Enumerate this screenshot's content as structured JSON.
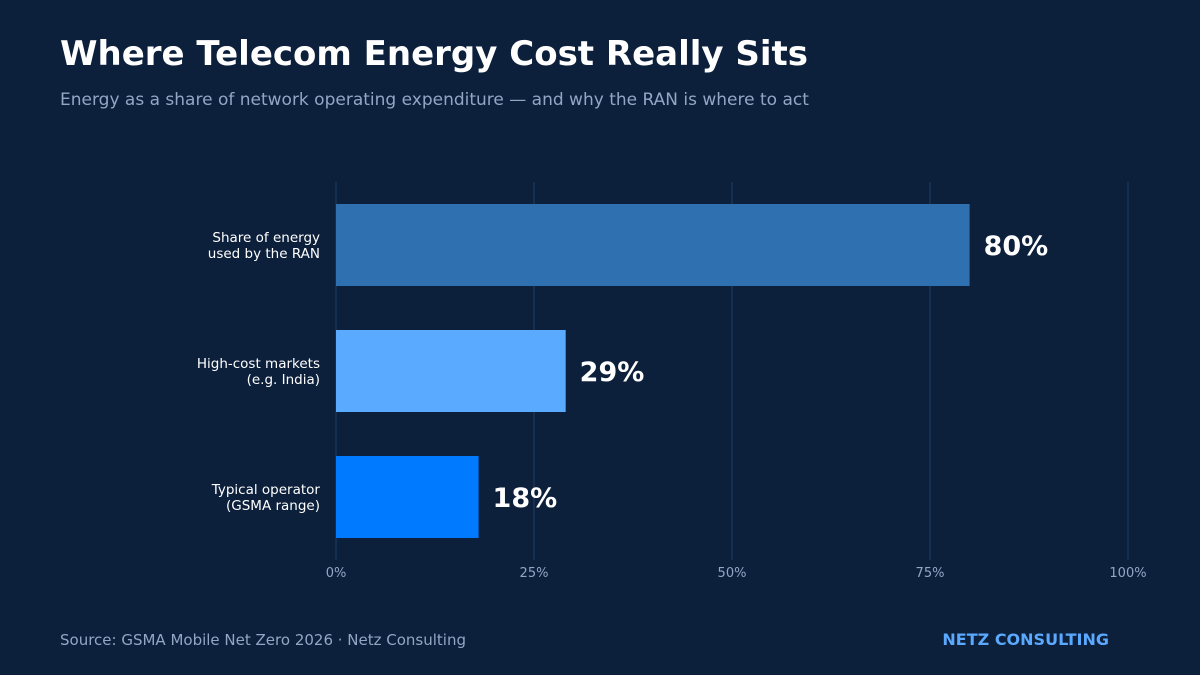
{
  "header": {
    "title": "Where Telecom Energy Cost Really Sits",
    "subtitle": "Energy as a share of network operating expenditure — and why the RAN is where to act"
  },
  "chart_data": {
    "type": "bar",
    "orientation": "horizontal",
    "categories": [
      [
        "Share of energy",
        "used by the RAN"
      ],
      [
        "High-cost markets",
        "(e.g. India)"
      ],
      [
        "Typical operator",
        "(GSMA range)"
      ]
    ],
    "values": [
      80,
      29,
      18
    ],
    "value_labels": [
      "80%",
      "29%",
      "18%"
    ],
    "bar_colors": [
      "#2e70b0",
      "#5aabff",
      "#007bff"
    ],
    "xlim": [
      0,
      100
    ],
    "xticks": [
      0,
      25,
      50,
      75,
      100
    ],
    "xtick_labels": [
      "0%",
      "25%",
      "50%",
      "75%",
      "100%"
    ],
    "grid": true,
    "legend": "none"
  },
  "footer": {
    "source": "Source: GSMA Mobile Net Zero 2026 · Netz Consulting",
    "brand": "NETZ CONSULTING"
  },
  "colors": {
    "background": "#0c1f3b",
    "grid": "#1e3a5f",
    "tick_text": "#93a7c4",
    "label_text": "#ffffff",
    "brand": "#5aa9ff"
  }
}
